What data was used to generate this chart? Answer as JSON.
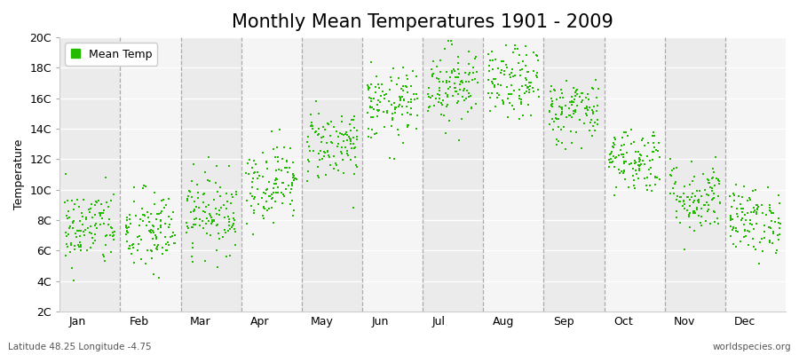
{
  "title": "Monthly Mean Temperatures 1901 - 2009",
  "ylabel": "Temperature",
  "subtitle_left": "Latitude 48.25 Longitude -4.75",
  "subtitle_right": "worldspecies.org",
  "legend_label": "Mean Temp",
  "dot_color": "#22bb00",
  "bg_even": "#ebebeb",
  "bg_odd": "#f5f5f5",
  "ylim": [
    2,
    20
  ],
  "ytick_labels": [
    "2C",
    "4C",
    "6C",
    "8C",
    "10C",
    "12C",
    "14C",
    "16C",
    "18C",
    "20C"
  ],
  "ytick_values": [
    2,
    4,
    6,
    8,
    10,
    12,
    14,
    16,
    18,
    20
  ],
  "months": [
    "Jan",
    "Feb",
    "Mar",
    "Apr",
    "May",
    "Jun",
    "Jul",
    "Aug",
    "Sep",
    "Oct",
    "Nov",
    "Dec"
  ],
  "month_means": [
    7.5,
    7.2,
    8.5,
    10.5,
    13.0,
    15.5,
    17.0,
    17.0,
    15.2,
    12.0,
    9.5,
    8.0
  ],
  "month_stds": [
    1.3,
    1.4,
    1.3,
    1.3,
    1.2,
    1.2,
    1.3,
    1.2,
    1.1,
    1.1,
    1.2,
    1.1
  ],
  "n_years": 109,
  "title_fontsize": 15,
  "axis_fontsize": 9,
  "tick_fontsize": 9,
  "legend_fontsize": 9,
  "marker_size": 4
}
